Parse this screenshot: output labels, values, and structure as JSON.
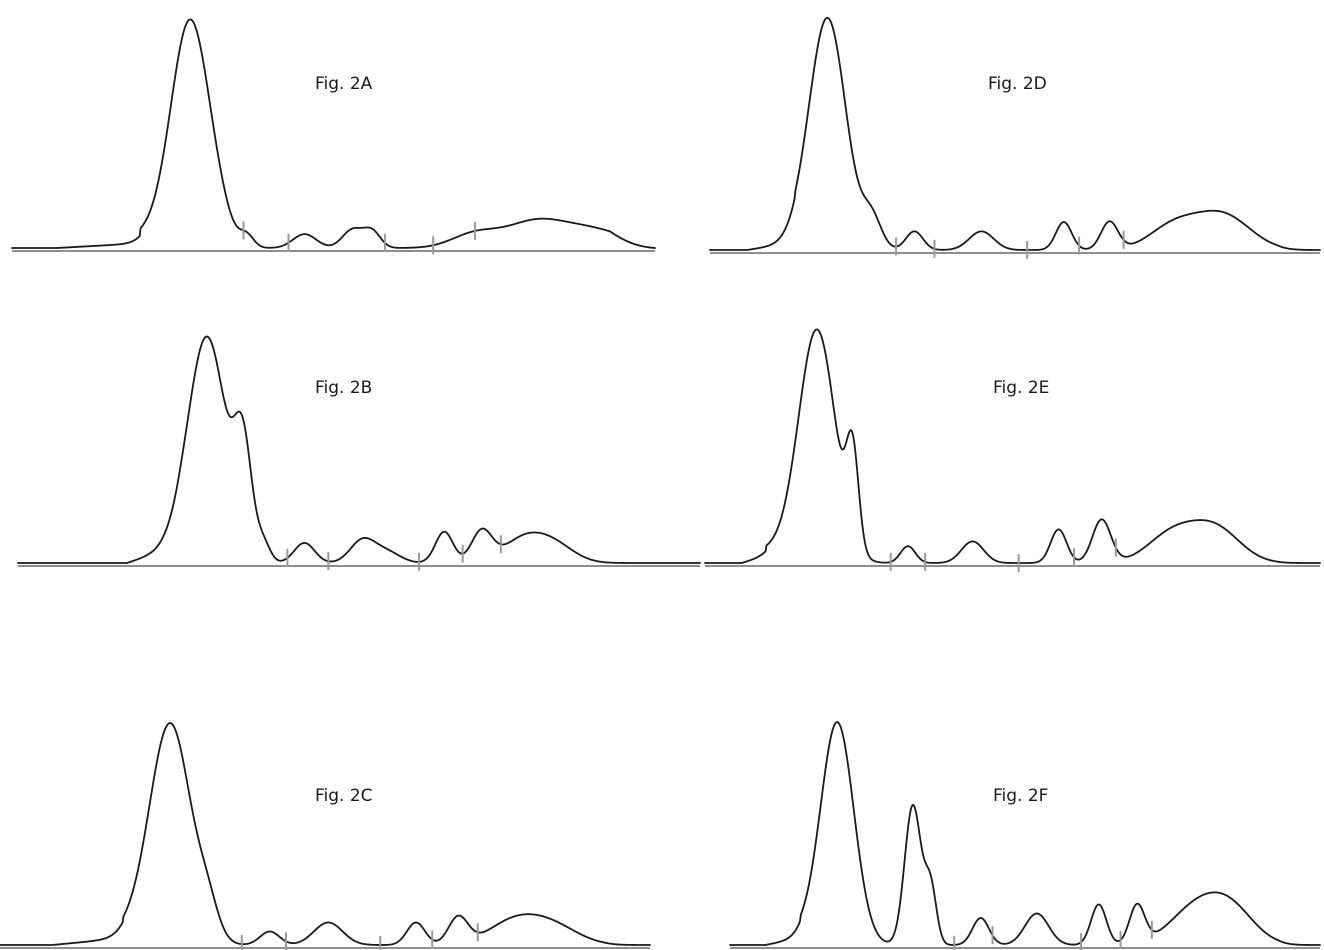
{
  "chart_data": [
    {
      "type": "line",
      "title": "Fig. 2A",
      "xlabel": "",
      "ylabel": "",
      "ylim": [
        0,
        1
      ],
      "grid": false,
      "peaks": [
        {
          "x": 0.277,
          "h": 0.98,
          "w": 0.03
        },
        {
          "x": 0.322,
          "h": 0.06,
          "w": 0.02
        },
        {
          "x": 0.365,
          "h": 0.05,
          "w": 0.011
        },
        {
          "x": 0.455,
          "h": 0.06,
          "w": 0.018
        },
        {
          "x": 0.53,
          "h": 0.08,
          "w": 0.016
        },
        {
          "x": 0.56,
          "h": 0.07,
          "w": 0.013
        },
        {
          "x": 0.72,
          "h": 0.06,
          "w": 0.036
        },
        {
          "x": 0.81,
          "h": 0.1,
          "w": 0.045
        },
        {
          "x": 0.9,
          "h": 0.08,
          "w": 0.055
        }
      ],
      "shoulder": {
        "from": 0.07,
        "to": 0.15,
        "level": 0.02,
        "step_at": 0.2,
        "step_level": 0.05
      },
      "ticks_x": [
        0.36,
        0.43,
        0.58,
        0.655,
        0.72
      ]
    },
    {
      "type": "line",
      "title": "Fig. 2B",
      "xlabel": "",
      "ylabel": "",
      "ylim": [
        0,
        1
      ],
      "grid": false,
      "peaks": [
        {
          "x": 0.278,
          "h": 0.97,
          "w": 0.028
        },
        {
          "x": 0.33,
          "h": 0.47,
          "w": 0.013
        },
        {
          "x": 0.36,
          "h": 0.08,
          "w": 0.01
        },
        {
          "x": 0.42,
          "h": 0.09,
          "w": 0.015
        },
        {
          "x": 0.505,
          "h": 0.1,
          "w": 0.018
        },
        {
          "x": 0.54,
          "h": 0.05,
          "w": 0.02
        },
        {
          "x": 0.625,
          "h": 0.14,
          "w": 0.013
        },
        {
          "x": 0.68,
          "h": 0.14,
          "w": 0.015
        },
        {
          "x": 0.74,
          "h": 0.1,
          "w": 0.03
        },
        {
          "x": 0.785,
          "h": 0.08,
          "w": 0.03
        }
      ],
      "shoulder": {
        "from": 0.16,
        "to": 0.25,
        "level": 0.08,
        "step_at": 0.24,
        "step_level": 0.08
      },
      "ticks_x": [
        0.395,
        0.455,
        0.588,
        0.652,
        0.708
      ]
    },
    {
      "type": "line",
      "title": "Fig. 2C",
      "xlabel": "",
      "ylabel": "",
      "ylim": [
        0,
        1
      ],
      "grid": false,
      "peaks": [
        {
          "x": 0.262,
          "h": 0.98,
          "w": 0.032
        },
        {
          "x": 0.32,
          "h": 0.12,
          "w": 0.016
        },
        {
          "x": 0.415,
          "h": 0.06,
          "w": 0.015
        },
        {
          "x": 0.505,
          "h": 0.1,
          "w": 0.022
        },
        {
          "x": 0.64,
          "h": 0.1,
          "w": 0.014
        },
        {
          "x": 0.705,
          "h": 0.12,
          "w": 0.015
        },
        {
          "x": 0.79,
          "h": 0.1,
          "w": 0.04
        },
        {
          "x": 0.85,
          "h": 0.08,
          "w": 0.04
        }
      ],
      "shoulder": {
        "from": 0.08,
        "to": 0.2,
        "level": 0.03,
        "step_at": 0.19,
        "step_level": 0.05
      },
      "ticks_x": [
        0.372,
        0.44,
        0.585,
        0.665,
        0.735
      ]
    },
    {
      "type": "line",
      "title": "Fig. 2D",
      "xlabel": "",
      "ylabel": "",
      "ylim": [
        0,
        1
      ],
      "grid": false,
      "peaks": [
        {
          "x": 0.193,
          "h": 0.98,
          "w": 0.03
        },
        {
          "x": 0.265,
          "h": 0.13,
          "w": 0.016
        },
        {
          "x": 0.335,
          "h": 0.08,
          "w": 0.014
        },
        {
          "x": 0.445,
          "h": 0.08,
          "w": 0.02
        },
        {
          "x": 0.58,
          "h": 0.12,
          "w": 0.013
        },
        {
          "x": 0.655,
          "h": 0.12,
          "w": 0.014
        },
        {
          "x": 0.76,
          "h": 0.1,
          "w": 0.04
        },
        {
          "x": 0.84,
          "h": 0.15,
          "w": 0.045
        }
      ],
      "shoulder": {
        "from": 0.06,
        "to": 0.15,
        "level": 0.03,
        "step_at": 0.14,
        "step_level": 0.05
      },
      "ticks_x": [
        0.305,
        0.368,
        0.52,
        0.605,
        0.678
      ]
    },
    {
      "type": "line",
      "title": "Fig. 2E",
      "xlabel": "",
      "ylabel": "",
      "ylim": [
        0,
        1
      ],
      "grid": false,
      "peaks": [
        {
          "x": 0.182,
          "h": 0.97,
          "w": 0.03
        },
        {
          "x": 0.24,
          "h": 0.39,
          "w": 0.01
        },
        {
          "x": 0.33,
          "h": 0.07,
          "w": 0.012
        },
        {
          "x": 0.435,
          "h": 0.09,
          "w": 0.018
        },
        {
          "x": 0.575,
          "h": 0.14,
          "w": 0.013
        },
        {
          "x": 0.645,
          "h": 0.18,
          "w": 0.015
        },
        {
          "x": 0.76,
          "h": 0.12,
          "w": 0.04
        },
        {
          "x": 0.83,
          "h": 0.14,
          "w": 0.04
        }
      ],
      "shoulder": {
        "from": 0.06,
        "to": 0.1,
        "level": 0.03,
        "step_at": 0.1,
        "step_level": 0.05
      },
      "ticks_x": [
        0.302,
        0.358,
        0.51,
        0.6,
        0.668
      ]
    },
    {
      "type": "line",
      "title": "Fig. 2F",
      "xlabel": "",
      "ylabel": "",
      "ylim": [
        0,
        1
      ],
      "grid": false,
      "peaks": [
        {
          "x": 0.182,
          "h": 0.98,
          "w": 0.028
        },
        {
          "x": 0.31,
          "h": 0.62,
          "w": 0.014
        },
        {
          "x": 0.34,
          "h": 0.25,
          "w": 0.01
        },
        {
          "x": 0.425,
          "h": 0.12,
          "w": 0.014
        },
        {
          "x": 0.52,
          "h": 0.14,
          "w": 0.02
        },
        {
          "x": 0.625,
          "h": 0.18,
          "w": 0.013
        },
        {
          "x": 0.69,
          "h": 0.17,
          "w": 0.013
        },
        {
          "x": 0.79,
          "h": 0.16,
          "w": 0.045
        },
        {
          "x": 0.85,
          "h": 0.14,
          "w": 0.04
        }
      ],
      "shoulder": {
        "from": 0.06,
        "to": 0.12,
        "level": 0.03,
        "step_at": 0.12,
        "step_level": 0.05
      },
      "ticks_x": [
        0.38,
        0.445,
        0.595,
        0.662,
        0.715
      ]
    }
  ]
}
